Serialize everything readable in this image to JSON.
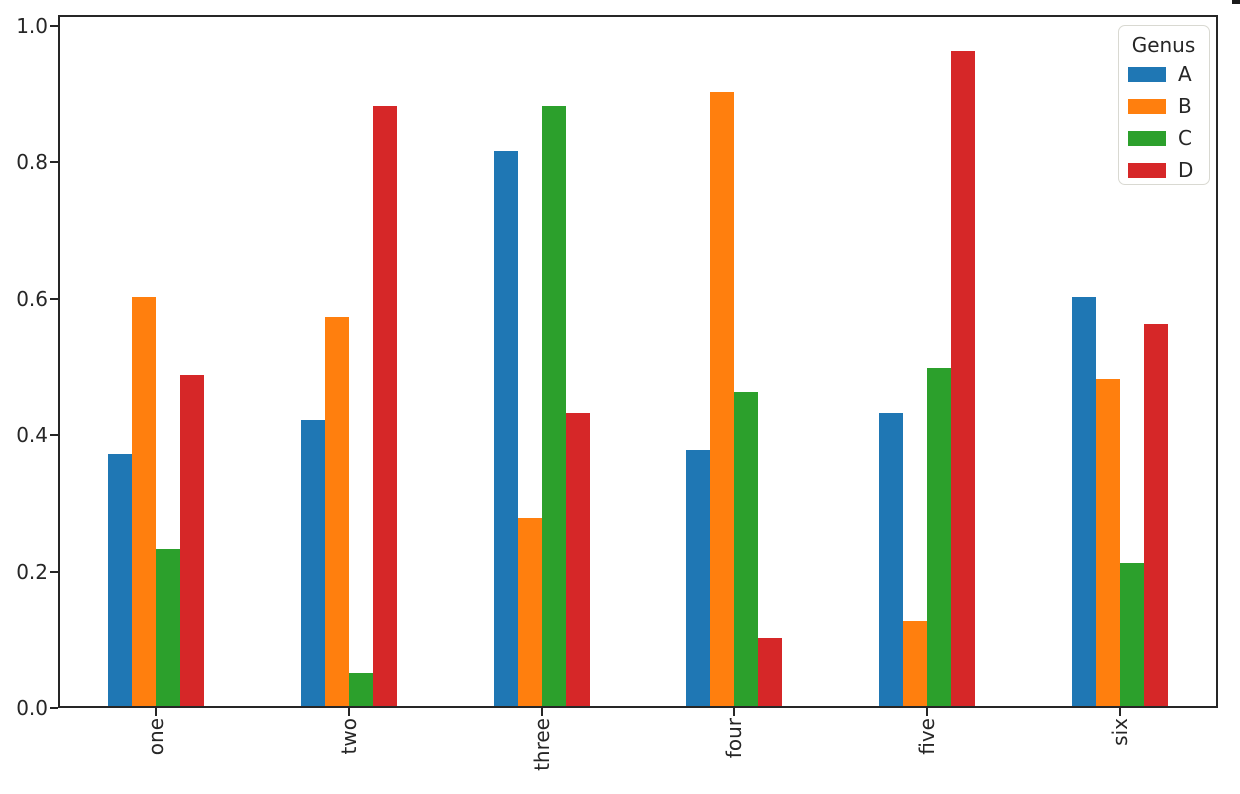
{
  "figure": {
    "background": "#ffffff",
    "axis_color": "#262626",
    "text_color": "#262626"
  },
  "chart_data": {
    "type": "bar",
    "title": "",
    "xlabel": "",
    "ylabel": "",
    "categories": [
      "one",
      "two",
      "three",
      "four",
      "five",
      "six"
    ],
    "series": [
      {
        "name": "A",
        "color": "#1f77b4",
        "values": [
          0.37,
          0.42,
          0.814,
          0.375,
          0.43,
          0.6
        ]
      },
      {
        "name": "B",
        "color": "#ff7f0e",
        "values": [
          0.6,
          0.57,
          0.275,
          0.9,
          0.125,
          0.48
        ]
      },
      {
        "name": "C",
        "color": "#2ca02c",
        "values": [
          0.23,
          0.048,
          0.88,
          0.46,
          0.495,
          0.21
        ]
      },
      {
        "name": "D",
        "color": "#d62728",
        "values": [
          0.485,
          0.88,
          0.43,
          0.1,
          0.96,
          0.56
        ]
      }
    ],
    "y_ticks": [
      0.0,
      0.2,
      0.4,
      0.6,
      0.8,
      1.0
    ],
    "y_tick_labels": [
      "0.0",
      "0.2",
      "0.4",
      "0.6",
      "0.8",
      "1.0"
    ],
    "ylim": [
      0.0,
      1.013
    ],
    "x_tick_rotation": 90,
    "grid": false,
    "legend_title": "Genus",
    "legend_position": "upper right"
  }
}
